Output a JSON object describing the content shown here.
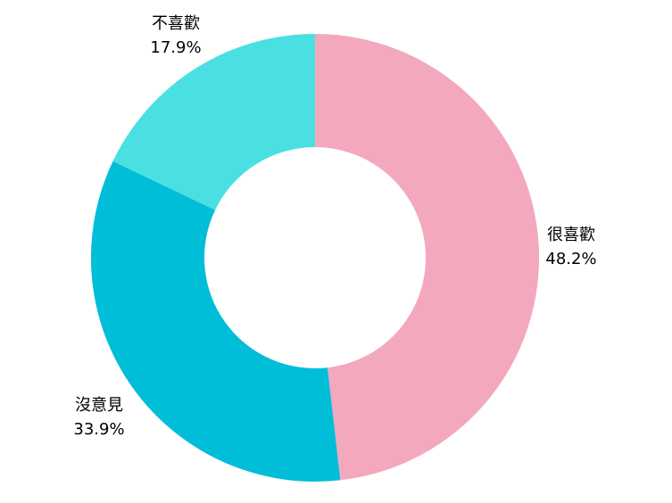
{
  "chart_data": {
    "type": "pie",
    "subtype": "donut",
    "title": "",
    "categories": [
      "很喜歡",
      "沒意見",
      "不喜歡"
    ],
    "values": [
      48.2,
      33.9,
      17.9
    ],
    "unit": "%",
    "colors": [
      "#F3A8BE",
      "#00BDD8",
      "#4AE0E2"
    ],
    "start_angle_deg": 0,
    "direction": "clockwise",
    "inner_radius_ratio": 0.494,
    "legend_position": "none",
    "labels_position": "outside"
  },
  "labels": {
    "segment_0": {
      "name": "很喜歡",
      "percent": "48.2%"
    },
    "segment_1": {
      "name": "沒意見",
      "percent": "33.9%"
    },
    "segment_2": {
      "name": "不喜歡",
      "percent": "17.9%"
    }
  },
  "style": {
    "background_color": "#FFFFFF",
    "text_color": "#000000"
  }
}
